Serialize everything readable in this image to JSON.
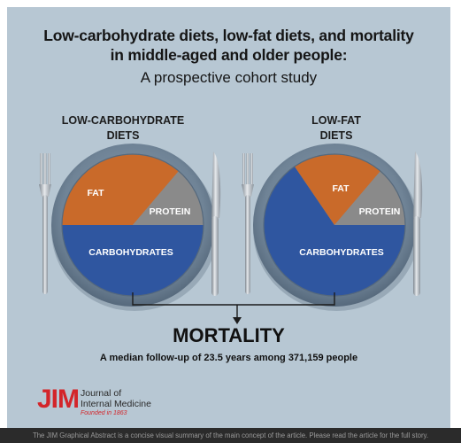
{
  "header": {
    "title_line1": "Low-carbohydrate diets, low-fat diets, and mortality",
    "title_line2": "in middle-aged and older people:",
    "subtitle": "A prospective cohort study"
  },
  "plates": [
    {
      "heading_line1": "LOW-CARBOHYDRATE",
      "heading_line2": "DIETS",
      "segments": {
        "fat": "FAT",
        "protein": "PROTEIN",
        "carbohydrates": "CARBOHYDRATES"
      }
    },
    {
      "heading_line1": "LOW-FAT",
      "heading_line2": "DIETS",
      "segments": {
        "fat": "FAT",
        "protein": "PROTEIN",
        "carbohydrates": "CARBOHYDRATES"
      }
    }
  ],
  "outcome": {
    "title": "MORTALITY",
    "followup": "A median follow-up of 23.5 years among 371,159 people"
  },
  "logo": {
    "abbrev": "JIM",
    "line1": "Journal of",
    "line2": "Internal Medicine",
    "founded": "Founded in 1863"
  },
  "footer": "The JIM Graphical Abstract is a concise visual summary of the main concept of the article. Please read the article for the full story.",
  "colors": {
    "background": "#b7c7d3",
    "fat": "#c96a2a",
    "protein": "#8a8a8a",
    "carbohydrates": "#2f56a0",
    "logo_red": "#d3252a"
  }
}
